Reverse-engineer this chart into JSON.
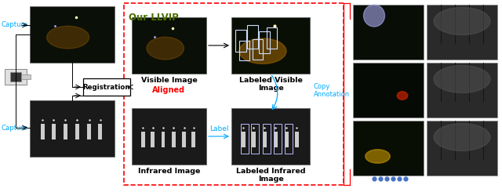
{
  "title": "Our LLVIP",
  "title_color": "#4a6e00",
  "title_fontsize": 8.5,
  "bg_color": "#ffffff",
  "capture_color": "#00aaff",
  "label_color": "#00aaff",
  "aligned_color": "#ff0000",
  "aligned_text": "Aligned",
  "label_text": "Label",
  "copy_annotation_text": "Copy\nAnnotation",
  "registration_text": "Registration",
  "visible_image_text": "Visible Image",
  "labeled_visible_text": "Labeled Visible\nImage",
  "infrared_image_text": "Infrared Image",
  "labeled_infrared_text": "Labeled Infrared\nImage",
  "dashed_box_color": "#ff0000",
  "dots_color": "#4472c4",
  "dots_count": 6,
  "text_fontsize": 6.5,
  "bold_text_fontsize": 6.8
}
